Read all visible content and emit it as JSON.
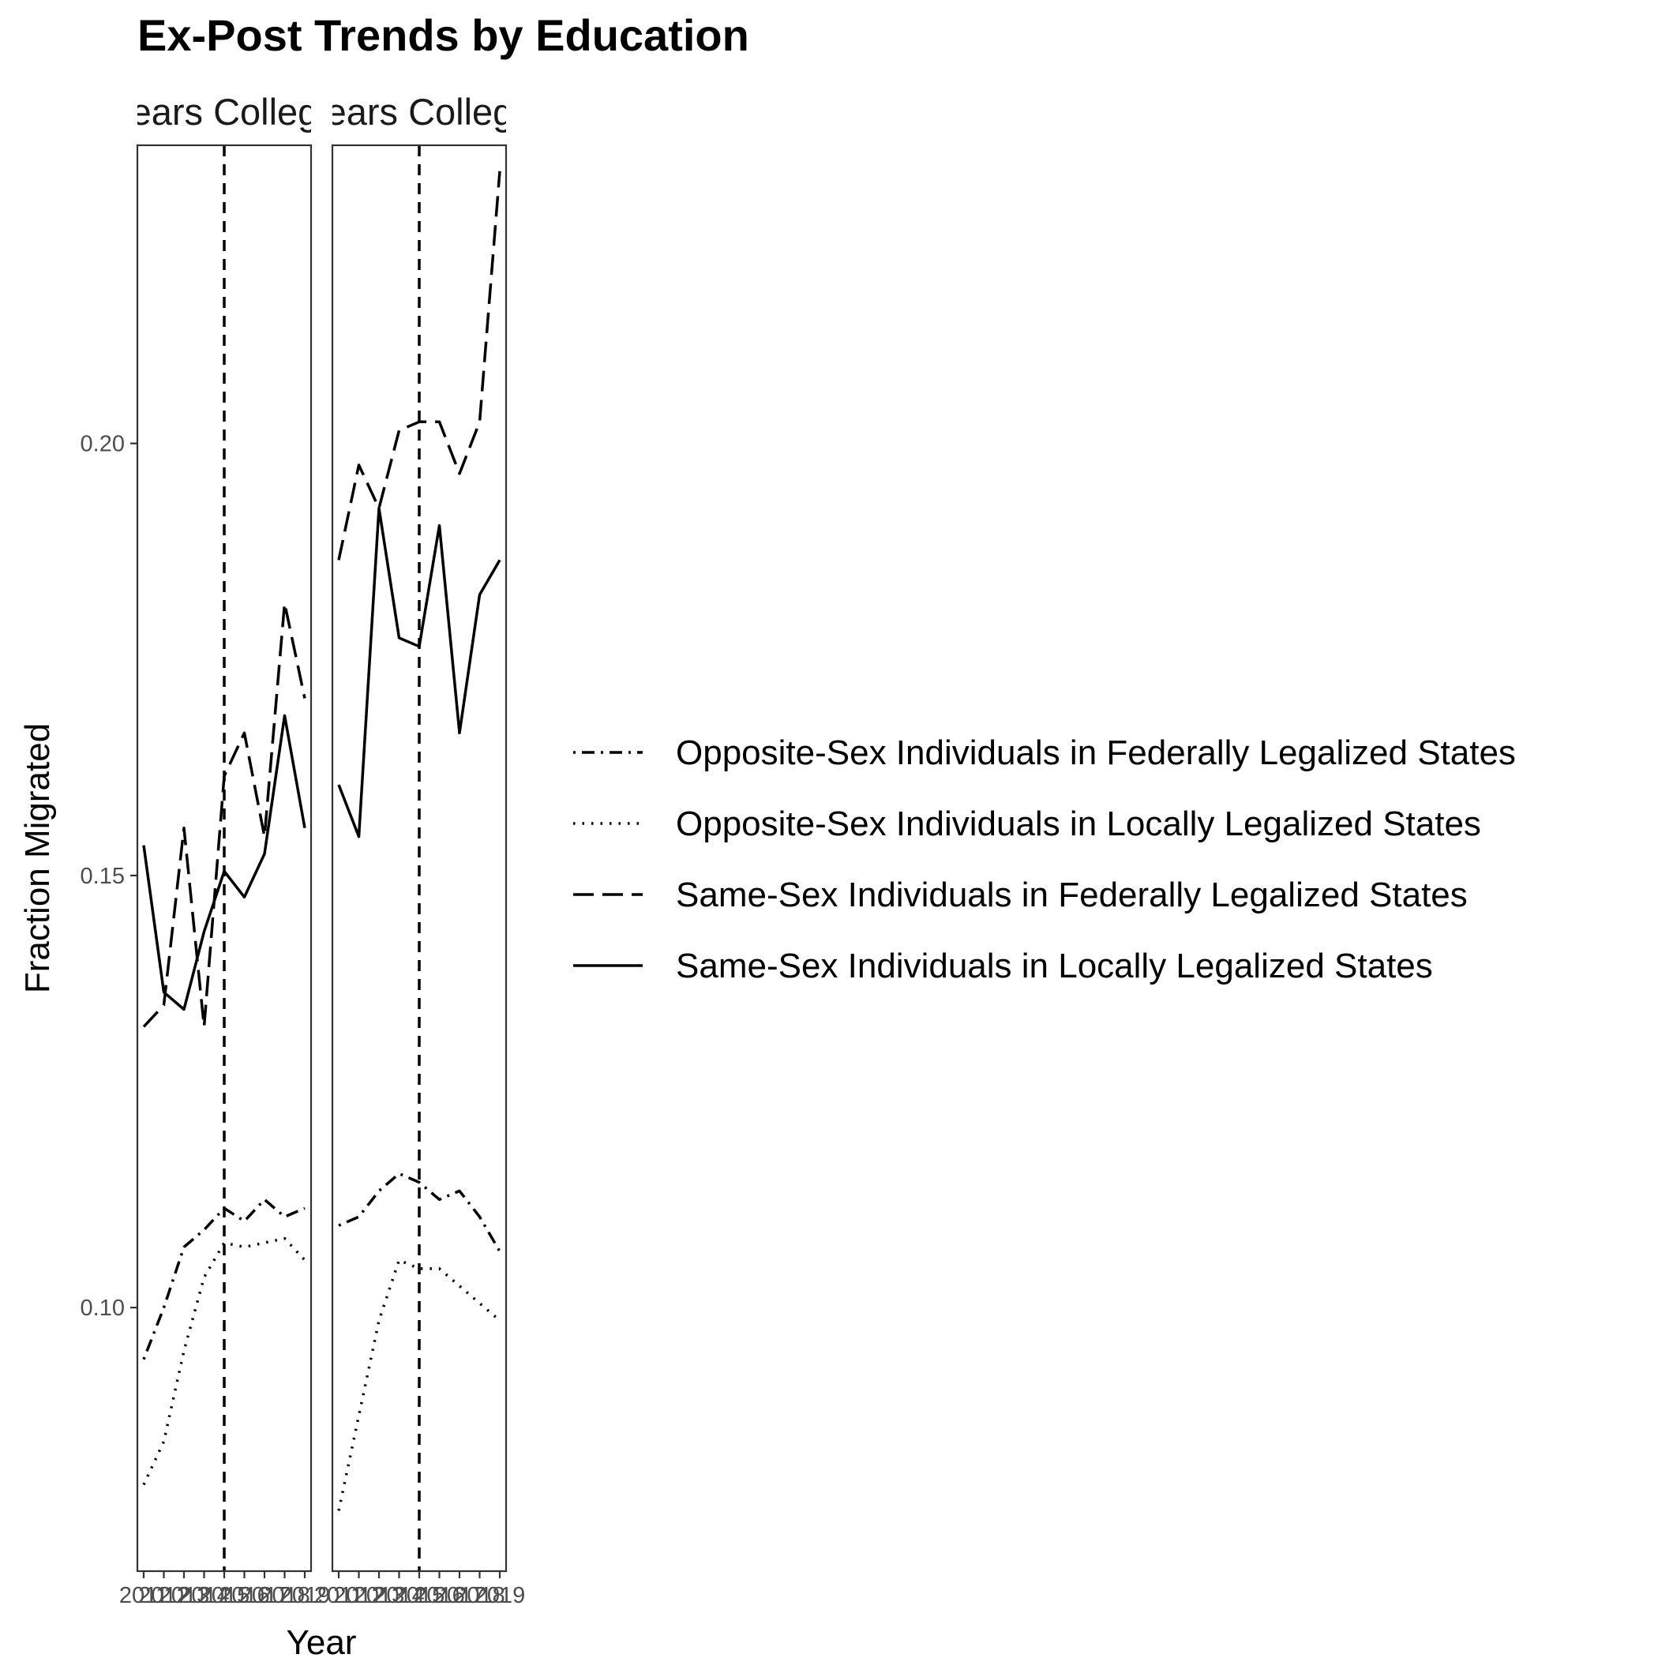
{
  "chart_data": {
    "type": "line",
    "title": "Ex-Post Trends by Education",
    "xlabel": "Year",
    "ylabel": "Fraction Migrated",
    "ylim": [
      0.0695,
      0.2345
    ],
    "y_ticks": [
      0.1,
      0.15,
      0.2
    ],
    "y_tick_labels": [
      "0.10",
      "0.15",
      "0.20"
    ],
    "x": [
      2011,
      2012,
      2013,
      2014,
      2015,
      2016,
      2017,
      2018,
      2019
    ],
    "x_tick_labels": [
      "2011",
      "2012",
      "2013",
      "2014",
      "2015",
      "2016",
      "2017",
      "2018",
      "2019"
    ],
    "reference_line_x": 2015,
    "grid": false,
    "legend_position": "right",
    "facets": [
      {
        "strip_label": "Years College",
        "series": [
          {
            "name": "Opposite-Sex Individuals in Federally Legalized States",
            "linetype": "dotdash",
            "values": [
              0.094,
              0.1,
              0.107,
              0.109,
              0.1115,
              0.11,
              0.1125,
              0.1105,
              0.1115
            ]
          },
          {
            "name": "Opposite-Sex Individuals in Locally Legalized States",
            "linetype": "dotted",
            "values": [
              0.0795,
              0.0845,
              0.095,
              0.1035,
              0.1075,
              0.107,
              0.1075,
              0.108,
              0.1055
            ]
          },
          {
            "name": "Same-Sex Individuals in Federally Legalized States",
            "linetype": "longdash",
            "values": [
              0.1325,
              0.135,
              0.1555,
              0.1325,
              0.1615,
              0.1665,
              0.1545,
              0.1815,
              0.1705
            ]
          },
          {
            "name": "Same-Sex Individuals in Locally Legalized States",
            "linetype": "solid",
            "values": [
              0.1535,
              0.1365,
              0.1345,
              0.1435,
              0.1505,
              0.1475,
              0.1525,
              0.1685,
              0.1555
            ]
          }
        ]
      },
      {
        "strip_label": "Years College",
        "series": [
          {
            "name": "Opposite-Sex Individuals in Federally Legalized States",
            "linetype": "dotdash",
            "values": [
              0.1095,
              0.1105,
              0.1135,
              0.1155,
              0.1145,
              0.1125,
              0.1135,
              0.1105,
              0.1065
            ]
          },
          {
            "name": "Opposite-Sex Individuals in Locally Legalized States",
            "linetype": "dotted",
            "values": [
              0.0765,
              0.0875,
              0.0985,
              0.1055,
              0.1045,
              0.1045,
              0.1025,
              0.1005,
              0.0985
            ]
          },
          {
            "name": "Same-Sex Individuals in Federally Legalized States",
            "linetype": "longdash",
            "values": [
              0.1865,
              0.1975,
              0.1925,
              0.2015,
              0.2025,
              0.2025,
              0.1965,
              0.2025,
              0.2315
            ]
          },
          {
            "name": "Same-Sex Individuals in Locally Legalized States",
            "linetype": "solid",
            "values": [
              0.1605,
              0.1545,
              0.1925,
              0.1775,
              0.1765,
              0.1905,
              0.1665,
              0.1825,
              0.1865
            ]
          }
        ]
      }
    ],
    "legend": [
      {
        "label": "Opposite-Sex Individuals in Federally Legalized States",
        "linetype": "dotdash"
      },
      {
        "label": "Opposite-Sex Individuals in Locally Legalized States",
        "linetype": "dotted"
      },
      {
        "label": "Same-Sex Individuals in Federally Legalized States",
        "linetype": "longdash"
      },
      {
        "label": "Same-Sex Individuals in Locally Legalized States",
        "linetype": "solid"
      }
    ],
    "line_color": "#000000"
  }
}
